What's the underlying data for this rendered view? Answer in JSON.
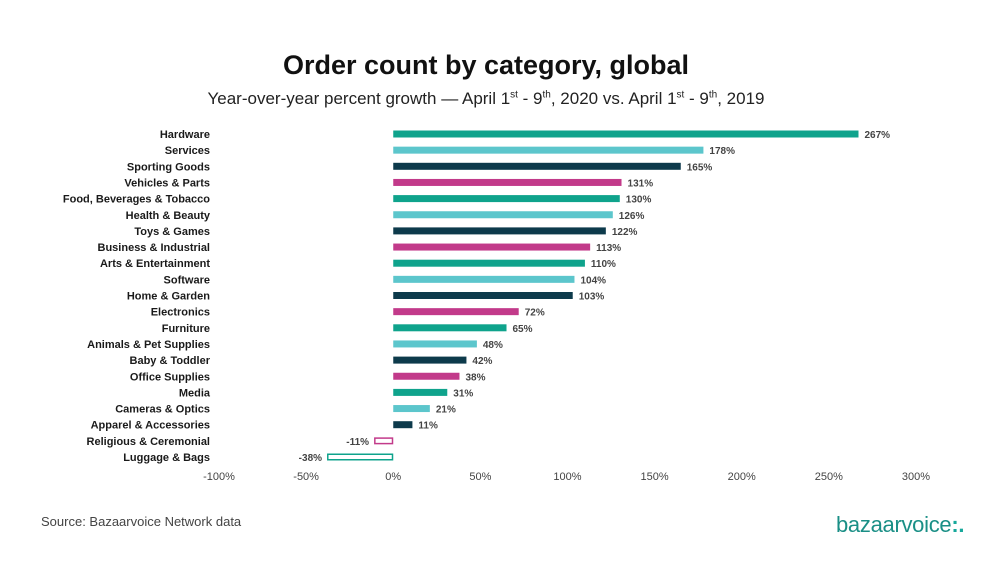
{
  "title": "Order count by category, global",
  "subtitle": {
    "p1": "Year-over-year percent growth — April 1",
    "s1": "st",
    "p2": " - 9",
    "s2": "th",
    "p3": ", 2020 vs. April 1",
    "s3": "st",
    "p4": " - 9",
    "s4": "th",
    "p5": ", 2019"
  },
  "source": "Source: Bazaarvoice Network data",
  "logo": {
    "text": "bazaarvoice",
    "mark": ":."
  },
  "colors": {
    "teal": "#0fa38c",
    "light": "#5cc6cc",
    "navy": "#0d3a4b",
    "magenta": "#c23a8a"
  },
  "chart_data": {
    "type": "bar",
    "orientation": "horizontal",
    "xlim": [
      -100,
      300
    ],
    "ticks": [
      -100,
      -50,
      0,
      50,
      100,
      150,
      200,
      250,
      300
    ],
    "tick_suffix": "%",
    "grid": false,
    "categories": [
      "Hardware",
      "Services",
      "Sporting Goods",
      "Vehicles & Parts",
      "Food, Beverages & Tobacco",
      "Health & Beauty",
      "Toys & Games",
      "Business & Industrial",
      "Arts & Entertainment",
      "Software",
      "Home & Garden",
      "Electronics",
      "Furniture",
      "Animals & Pet Supplies",
      "Baby & Toddler",
      "Office Supplies",
      "Media",
      "Cameras & Optics",
      "Apparel & Accessories",
      "Religious & Ceremonial",
      "Luggage & Bags"
    ],
    "values": [
      267,
      178,
      165,
      131,
      130,
      126,
      122,
      113,
      110,
      104,
      103,
      72,
      65,
      48,
      42,
      38,
      31,
      21,
      11,
      -11,
      -38
    ],
    "labels": [
      "267%",
      "178%",
      "165%",
      "131%",
      "130%",
      "126%",
      "122%",
      "113%",
      "110%",
      "104%",
      "103%",
      "72%",
      "65%",
      "48%",
      "42%",
      "38%",
      "31%",
      "21%",
      "11%",
      "-11%",
      "-38%"
    ],
    "bar_colors": [
      "teal",
      "light",
      "navy",
      "magenta",
      "teal",
      "light",
      "navy",
      "magenta",
      "teal",
      "light",
      "navy",
      "magenta",
      "teal",
      "light",
      "navy",
      "magenta",
      "teal",
      "light",
      "navy",
      "magenta",
      "teal"
    ]
  }
}
